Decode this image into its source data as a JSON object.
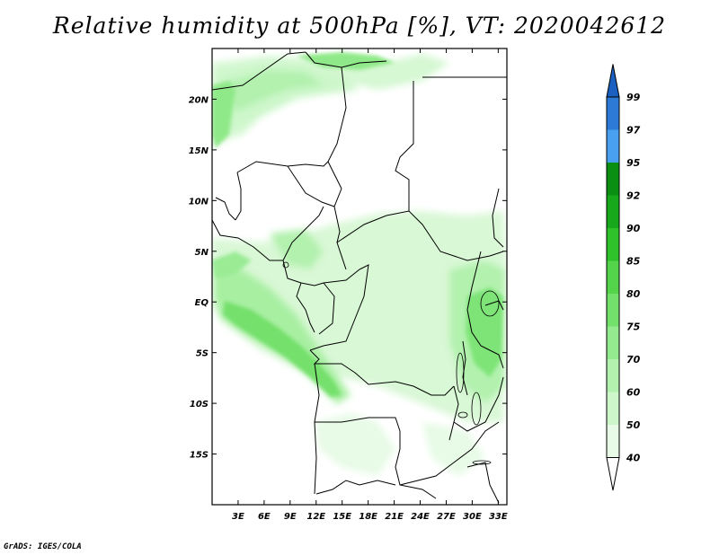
{
  "title": "Relative humidity at 500hPa [%], VT: 2020042612",
  "credit": "GrADS: IGES/COLA",
  "map": {
    "lon_range": [
      0,
      34
    ],
    "lat_range": [
      -20,
      25
    ],
    "lon_ticks": [
      "3E",
      "6E",
      "9E",
      "12E",
      "15E",
      "18E",
      "21E",
      "24E",
      "27E",
      "30E",
      "33E"
    ],
    "lat_ticks": [
      "20N",
      "15N",
      "10N",
      "5N",
      "EQ",
      "5S",
      "10S",
      "15S"
    ]
  },
  "colorbar": {
    "labels": [
      "40",
      "50",
      "60",
      "70",
      "75",
      "80",
      "85",
      "90",
      "92",
      "95",
      "97",
      "99"
    ],
    "colors": [
      "#ffffff",
      "#e7fbe6",
      "#cdf7cb",
      "#b2f1ae",
      "#94ea8e",
      "#74e06c",
      "#54d44a",
      "#30c22a",
      "#17a81b",
      "#0a8f12",
      "#4aa0f0",
      "#2c7ad6",
      "#1b5fc0"
    ]
  }
}
